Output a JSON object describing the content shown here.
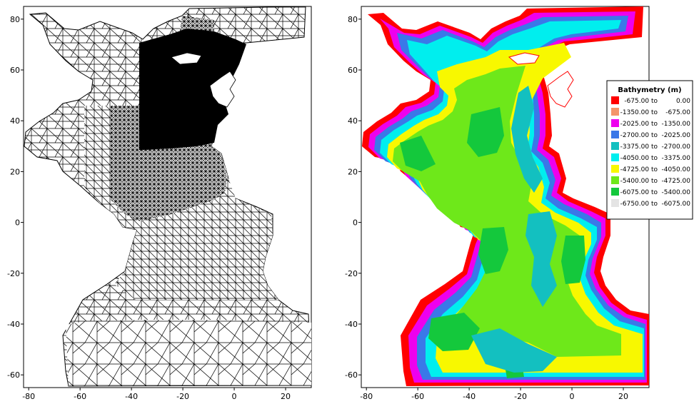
{
  "maps": [
    {
      "name": "mesh",
      "xlim": [
        -82,
        30
      ],
      "ylim": [
        -65,
        85
      ],
      "x_ticks": [
        -80,
        -60,
        -40,
        -20,
        0,
        20
      ],
      "y_ticks": [
        -60,
        -40,
        -20,
        0,
        20,
        40,
        60,
        80
      ],
      "x_tick_labels": [
        "-80",
        "-60",
        "-40",
        "-20",
        "0",
        "20"
      ],
      "y_tick_labels": [
        "-60",
        "-40",
        "-20",
        "0",
        "20",
        "40",
        "60",
        "80"
      ]
    },
    {
      "name": "bathymetry",
      "xlim": [
        -82,
        30
      ],
      "ylim": [
        -65,
        85
      ],
      "x_ticks": [
        -80,
        -60,
        -40,
        -20,
        0,
        20
      ],
      "y_ticks": [
        -60,
        -40,
        -20,
        0,
        20,
        40,
        60,
        80
      ],
      "x_tick_labels": [
        "-80",
        "-60",
        "-40",
        "-20",
        "0",
        "20"
      ],
      "y_tick_labels": [
        "-60",
        "-40",
        "-20",
        "0",
        "20",
        "40",
        "60",
        "80"
      ]
    }
  ],
  "legend": {
    "title": "Bathymetry (m)",
    "entries": [
      {
        "color": "#ff0000",
        "from": "-675.00 to",
        "to": "0.00"
      },
      {
        "color": "#f4956a",
        "from": "-1350.00 to",
        "to": "-675.00"
      },
      {
        "color": "#ee00ee",
        "from": "-2025.00 to",
        "to": "-1350.00"
      },
      {
        "color": "#3a78e8",
        "from": "-2700.00 to",
        "to": "-2025.00"
      },
      {
        "color": "#13c0c0",
        "from": "-3375.00 to",
        "to": "-2700.00"
      },
      {
        "color": "#00eeee",
        "from": "-4050.00 to",
        "to": "-3375.00"
      },
      {
        "color": "#f8f800",
        "from": "-4725.00 to",
        "to": "-4050.00"
      },
      {
        "color": "#6ee81a",
        "from": "-5400.00 to",
        "to": "-4725.00"
      },
      {
        "color": "#14c83c",
        "from": "-6075.00 to",
        "to": "-5400.00"
      },
      {
        "color": "#e4e4e4",
        "from": "-6750.00 to",
        "to": "-6075.00"
      }
    ]
  }
}
